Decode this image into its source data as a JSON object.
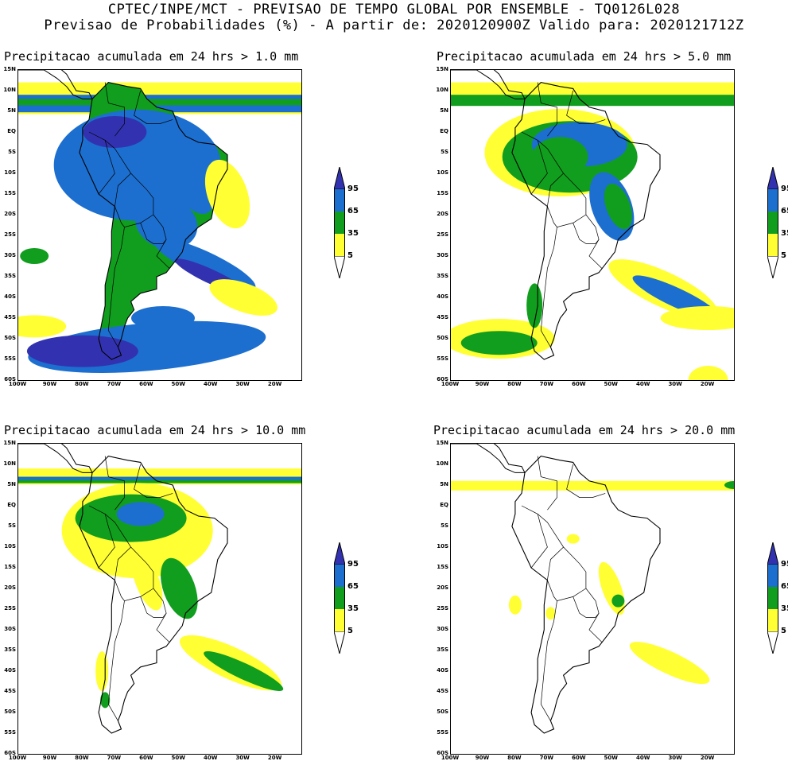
{
  "header": {
    "line1": "CPTEC/INPE/MCT - PREVISAO DE TEMPO GLOBAL POR ENSEMBLE - TQ0126L028",
    "line2": "Previsao de Probabilidades (%) -  A partir de: 2020120900Z  Valido para: 2020121712Z"
  },
  "colors": {
    "white": "#ffffff",
    "yellow": "#ffff33",
    "green": "#119e1e",
    "blue": "#1c6fcf",
    "darkblue": "#3232b0"
  },
  "lat_labels": [
    "15N",
    "10N",
    "5N",
    "EQ",
    "5S",
    "10S",
    "15S",
    "20S",
    "25S",
    "30S",
    "35S",
    "40S",
    "45S",
    "50S",
    "55S",
    "60S"
  ],
  "lon_labels": [
    "100W",
    "90W",
    "80W",
    "70W",
    "60W",
    "50W",
    "40W",
    "30W",
    "20W"
  ],
  "colorbar_labels": [
    "95",
    "65",
    "35",
    "5"
  ],
  "panels": [
    {
      "title": "Precipitacao acumulada em 24 hrs > 1.0 mm"
    },
    {
      "title": "Precipitacao acumulada em 24 hrs > 5.0 mm"
    },
    {
      "title": "Precipitacao acumulada em 24 hrs > 10.0 mm"
    },
    {
      "title": "Precipitacao acumulada em 24 hrs > 20.0 mm"
    }
  ]
}
